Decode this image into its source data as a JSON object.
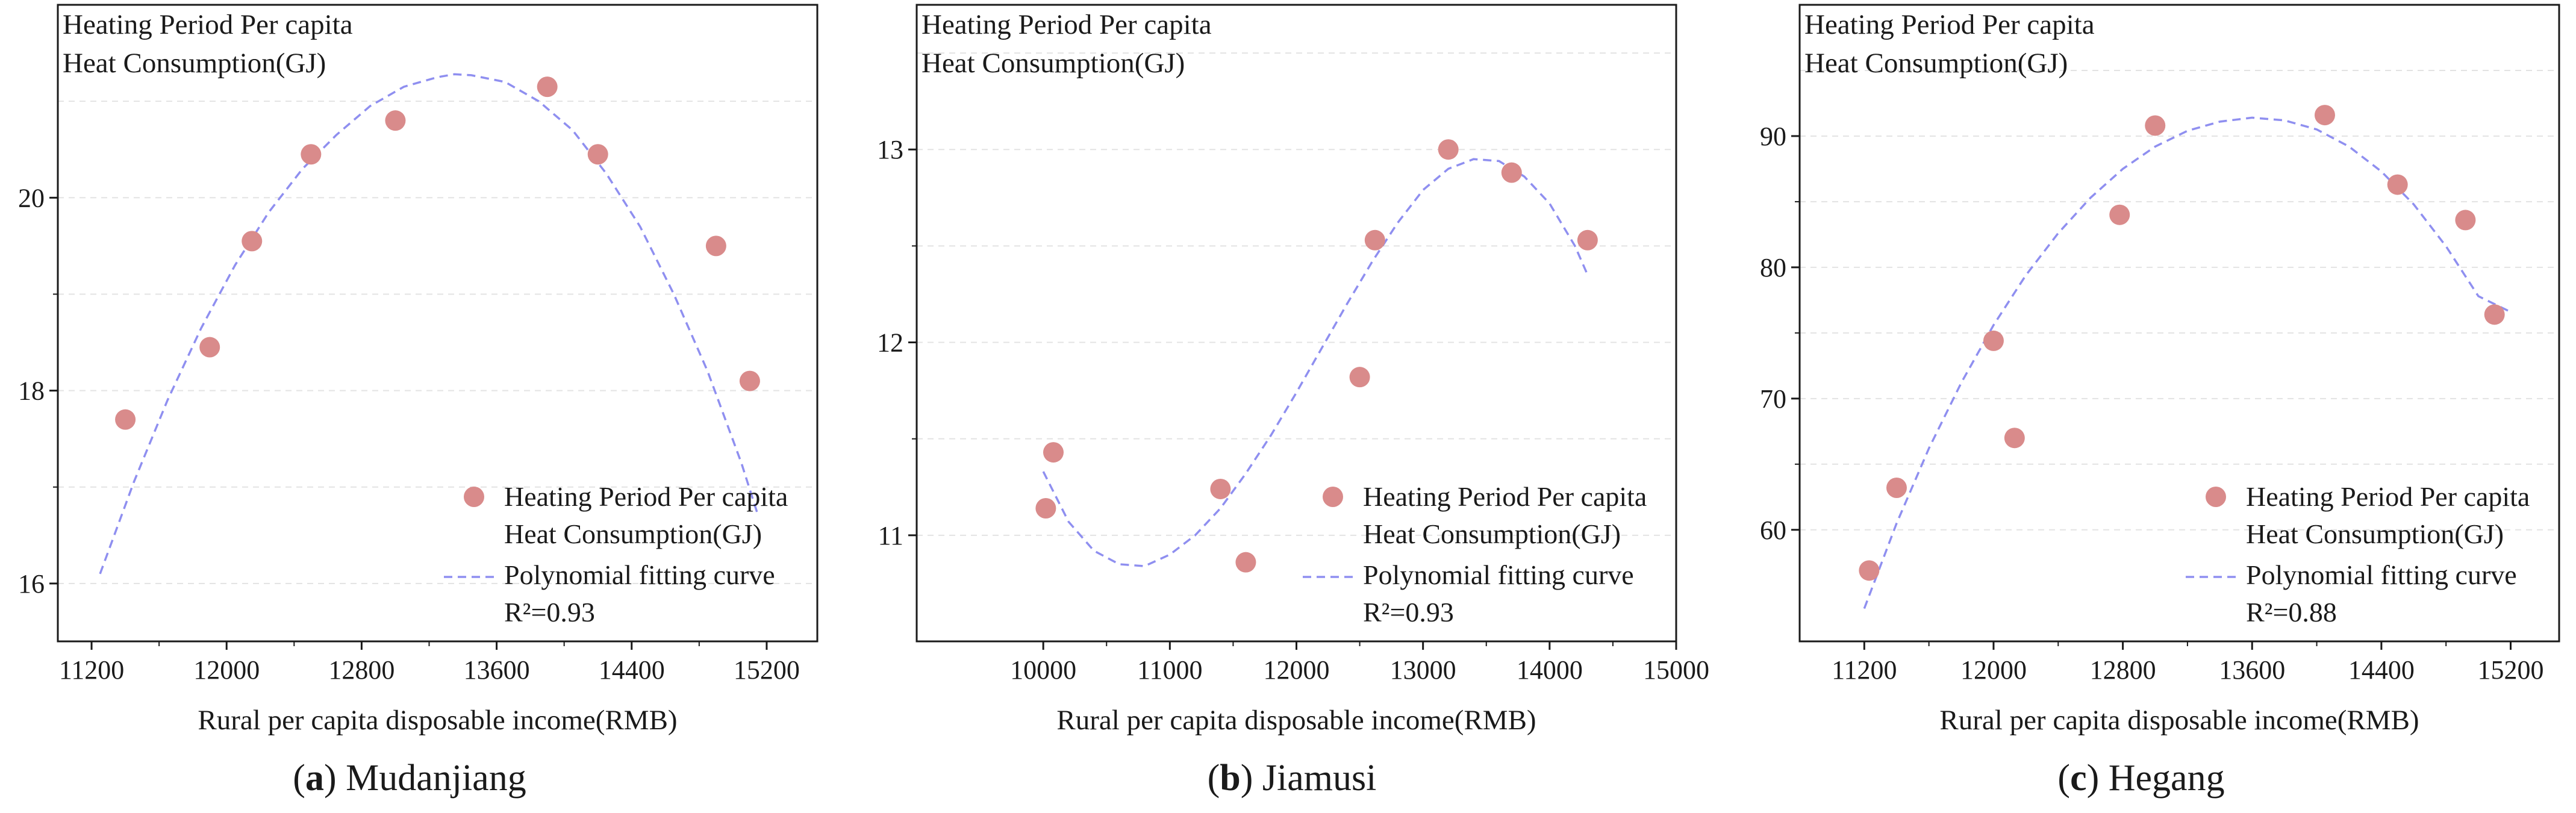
{
  "chart_data": [
    {
      "type": "scatter",
      "panel": "a",
      "caption_letter": "a",
      "caption_name": "Mudanjiang",
      "ylabel_lines": [
        "Heating Period Per capita",
        "Heat Consumption(GJ)"
      ],
      "xlabel": "Rural per capita disposable income(RMB)",
      "xlim": [
        11000,
        15500
      ],
      "ylim": [
        15.4,
        22.0
      ],
      "xticks": [
        11200,
        12000,
        12800,
        13600,
        14400,
        15200
      ],
      "yticks": [
        16,
        18,
        20
      ],
      "grid": true,
      "legend_position": "bottom-right",
      "legend_lines": [
        "Heating Period Per capita",
        "Heat Consumption(GJ)",
        "Polynomial fitting curve"
      ],
      "r2": "R²=0.93",
      "series": [
        {
          "name": "Heating Period Per capita Heat Consumption(GJ)",
          "kind": "points",
          "x": [
            11400,
            11900,
            12150,
            12500,
            13000,
            13900,
            14200,
            14900,
            15100
          ],
          "y": [
            17.7,
            18.45,
            19.55,
            20.45,
            20.8,
            21.15,
            20.45,
            19.5,
            18.1
          ]
        },
        {
          "name": "Polynomial fitting curve",
          "kind": "curve",
          "x": [
            11250,
            11450,
            11650,
            11850,
            12050,
            12250,
            12450,
            12650,
            12850,
            13050,
            13250,
            13350,
            13450,
            13650,
            13850,
            14050,
            14250,
            14450,
            14650,
            14850,
            15050,
            15150
          ],
          "y": [
            16.1,
            17.05,
            17.9,
            18.65,
            19.3,
            19.85,
            20.3,
            20.65,
            20.95,
            21.15,
            21.25,
            21.28,
            21.27,
            21.2,
            21.0,
            20.7,
            20.25,
            19.7,
            19.0,
            18.2,
            17.25,
            16.7
          ]
        }
      ]
    },
    {
      "type": "scatter",
      "panel": "b",
      "caption_letter": "b",
      "caption_name": "Jiamusi",
      "ylabel_lines": [
        "Heating Period Per capita",
        "Heat Consumption(GJ)"
      ],
      "xlabel": "Rural per capita disposable income(RMB)",
      "xlim": [
        9000,
        15000
      ],
      "ylim": [
        10.45,
        13.75
      ],
      "xticks": [
        10000,
        11000,
        12000,
        13000,
        14000,
        15000
      ],
      "yticks": [
        11,
        12,
        13
      ],
      "grid": true,
      "legend_position": "bottom-right",
      "legend_lines": [
        "Heating Period Per capita",
        "Heat Consumption(GJ)",
        "Polynomial fitting curve"
      ],
      "r2": "R²=0.93",
      "series": [
        {
          "name": "Heating Period Per capita Heat Consumption(GJ)",
          "kind": "points",
          "x": [
            10020,
            10080,
            11400,
            11600,
            12500,
            12620,
            13200,
            13700,
            14300
          ],
          "y": [
            11.14,
            11.43,
            11.24,
            10.86,
            11.82,
            12.53,
            13.0,
            12.88,
            12.53
          ]
        },
        {
          "name": "Polynomial fitting curve",
          "kind": "curve",
          "x": [
            10000,
            10200,
            10400,
            10600,
            10800,
            11000,
            11200,
            11400,
            11600,
            11800,
            12000,
            12200,
            12400,
            12600,
            12800,
            13000,
            13200,
            13400,
            13600,
            13800,
            14000,
            14200,
            14300
          ],
          "y": [
            11.33,
            11.07,
            10.92,
            10.85,
            10.84,
            10.9,
            11.0,
            11.14,
            11.32,
            11.52,
            11.74,
            11.97,
            12.2,
            12.42,
            12.62,
            12.79,
            12.9,
            12.95,
            12.94,
            12.86,
            12.72,
            12.5,
            12.35
          ]
        }
      ]
    },
    {
      "type": "scatter",
      "panel": "c",
      "caption_letter": "c",
      "caption_name": "Hegang",
      "ylabel_lines": [
        "Heating Period Per capita",
        "Heat Consumption(GJ)"
      ],
      "xlabel": "Rural per capita disposable income(RMB)",
      "xlim": [
        10800,
        15500
      ],
      "ylim": [
        51.5,
        100.0
      ],
      "xticks": [
        11200,
        12000,
        12800,
        13600,
        14400,
        15200
      ],
      "yticks": [
        60,
        70,
        80,
        90
      ],
      "grid": true,
      "legend_position": "bottom-right",
      "legend_lines": [
        "Heating Period Per capita",
        "Heat Consumption(GJ)",
        "Polynomial fitting curve"
      ],
      "r2": "R²=0.88",
      "series": [
        {
          "name": "Heating Period Per capita Heat Consumption(GJ)",
          "kind": "points",
          "x": [
            11230,
            11400,
            12000,
            12130,
            12780,
            13000,
            14050,
            14500,
            14920,
            15100
          ],
          "y": [
            56.9,
            63.2,
            74.4,
            67.0,
            84.0,
            90.8,
            91.6,
            86.3,
            83.6,
            76.4
          ]
        },
        {
          "name": "Polynomial fitting curve",
          "kind": "curve",
          "x": [
            11200,
            11400,
            11600,
            11800,
            12000,
            12200,
            12400,
            12600,
            12800,
            13000,
            13200,
            13400,
            13600,
            13800,
            14000,
            14200,
            14400,
            14600,
            14800,
            15000,
            15200
          ],
          "y": [
            54.0,
            60.5,
            66.2,
            71.2,
            75.6,
            79.4,
            82.6,
            85.3,
            87.5,
            89.2,
            90.4,
            91.1,
            91.4,
            91.2,
            90.5,
            89.2,
            87.3,
            84.8,
            81.6,
            77.8,
            76.6
          ]
        }
      ]
    }
  ]
}
